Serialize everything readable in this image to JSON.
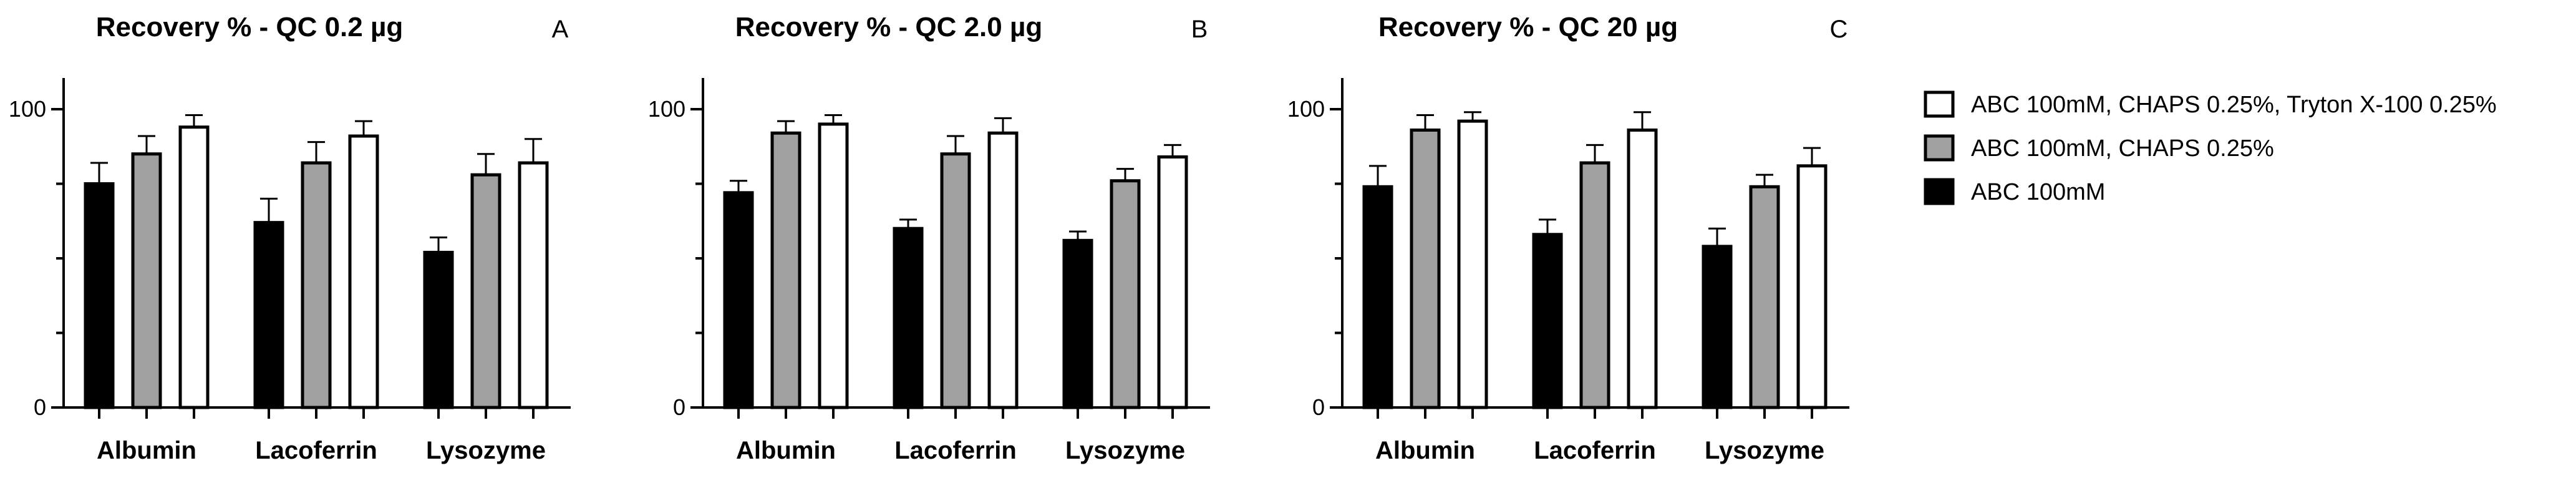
{
  "chart_data": [
    {
      "type": "bar",
      "title": "Recovery % - QC 0.2 µg",
      "panel_label": "A",
      "categories": [
        "Albumin",
        "Lacoferrin",
        "Lysozyme"
      ],
      "ylim": [
        0,
        110
      ],
      "yticks": [
        0,
        100
      ],
      "xlabel": "",
      "ylabel": "",
      "series": [
        {
          "name": "ABC 100mM",
          "values": [
            75,
            62,
            52
          ],
          "errors": [
            7,
            8,
            5
          ]
        },
        {
          "name": "ABC 100mM, CHAPS 0.25%",
          "values": [
            85,
            82,
            78
          ],
          "errors": [
            6,
            7,
            7
          ]
        },
        {
          "name": "ABC 100mM, CHAPS 0.25%, Tryton X-100 0.25%",
          "values": [
            94,
            91,
            82
          ],
          "errors": [
            4,
            5,
            8
          ]
        }
      ]
    },
    {
      "type": "bar",
      "title": "Recovery % - QC 2.0 µg",
      "panel_label": "B",
      "categories": [
        "Albumin",
        "Lacoferrin",
        "Lysozyme"
      ],
      "ylim": [
        0,
        110
      ],
      "yticks": [
        0,
        100
      ],
      "xlabel": "",
      "ylabel": "",
      "series": [
        {
          "name": "ABC 100mM",
          "values": [
            72,
            60,
            56
          ],
          "errors": [
            4,
            3,
            3
          ]
        },
        {
          "name": "ABC 100mM, CHAPS 0.25%",
          "values": [
            92,
            85,
            76
          ],
          "errors": [
            4,
            6,
            4
          ]
        },
        {
          "name": "ABC 100mM, CHAPS 0.25%, Tryton X-100 0.25%",
          "values": [
            95,
            92,
            84
          ],
          "errors": [
            3,
            5,
            4
          ]
        }
      ]
    },
    {
      "type": "bar",
      "title": "Recovery % - QC 20 µg",
      "panel_label": "C",
      "categories": [
        "Albumin",
        "Lacoferrin",
        "Lysozyme"
      ],
      "ylim": [
        0,
        110
      ],
      "yticks": [
        0,
        100
      ],
      "xlabel": "",
      "ylabel": "",
      "series": [
        {
          "name": "ABC 100mM",
          "values": [
            74,
            58,
            54
          ],
          "errors": [
            7,
            5,
            6
          ]
        },
        {
          "name": "ABC 100mM, CHAPS 0.25%",
          "values": [
            93,
            82,
            74
          ],
          "errors": [
            5,
            6,
            4
          ]
        },
        {
          "name": "ABC 100mM, CHAPS 0.25%, Tryton X-100 0.25%",
          "values": [
            96,
            93,
            81
          ],
          "errors": [
            3,
            6,
            6
          ]
        }
      ]
    }
  ],
  "legend": {
    "placement": "right",
    "items": [
      {
        "label": "ABC 100mM, CHAPS 0.25%, Tryton X-100 0.25%",
        "fill": "#ffffff"
      },
      {
        "label": "ABC 100mM, CHAPS 0.25%",
        "fill": "#a0a0a0"
      },
      {
        "label": "ABC 100mM",
        "fill": "#000000"
      }
    ]
  },
  "colors": {
    "series": [
      "#000000",
      "#a0a0a0",
      "#ffffff"
    ],
    "stroke": "#000000"
  }
}
